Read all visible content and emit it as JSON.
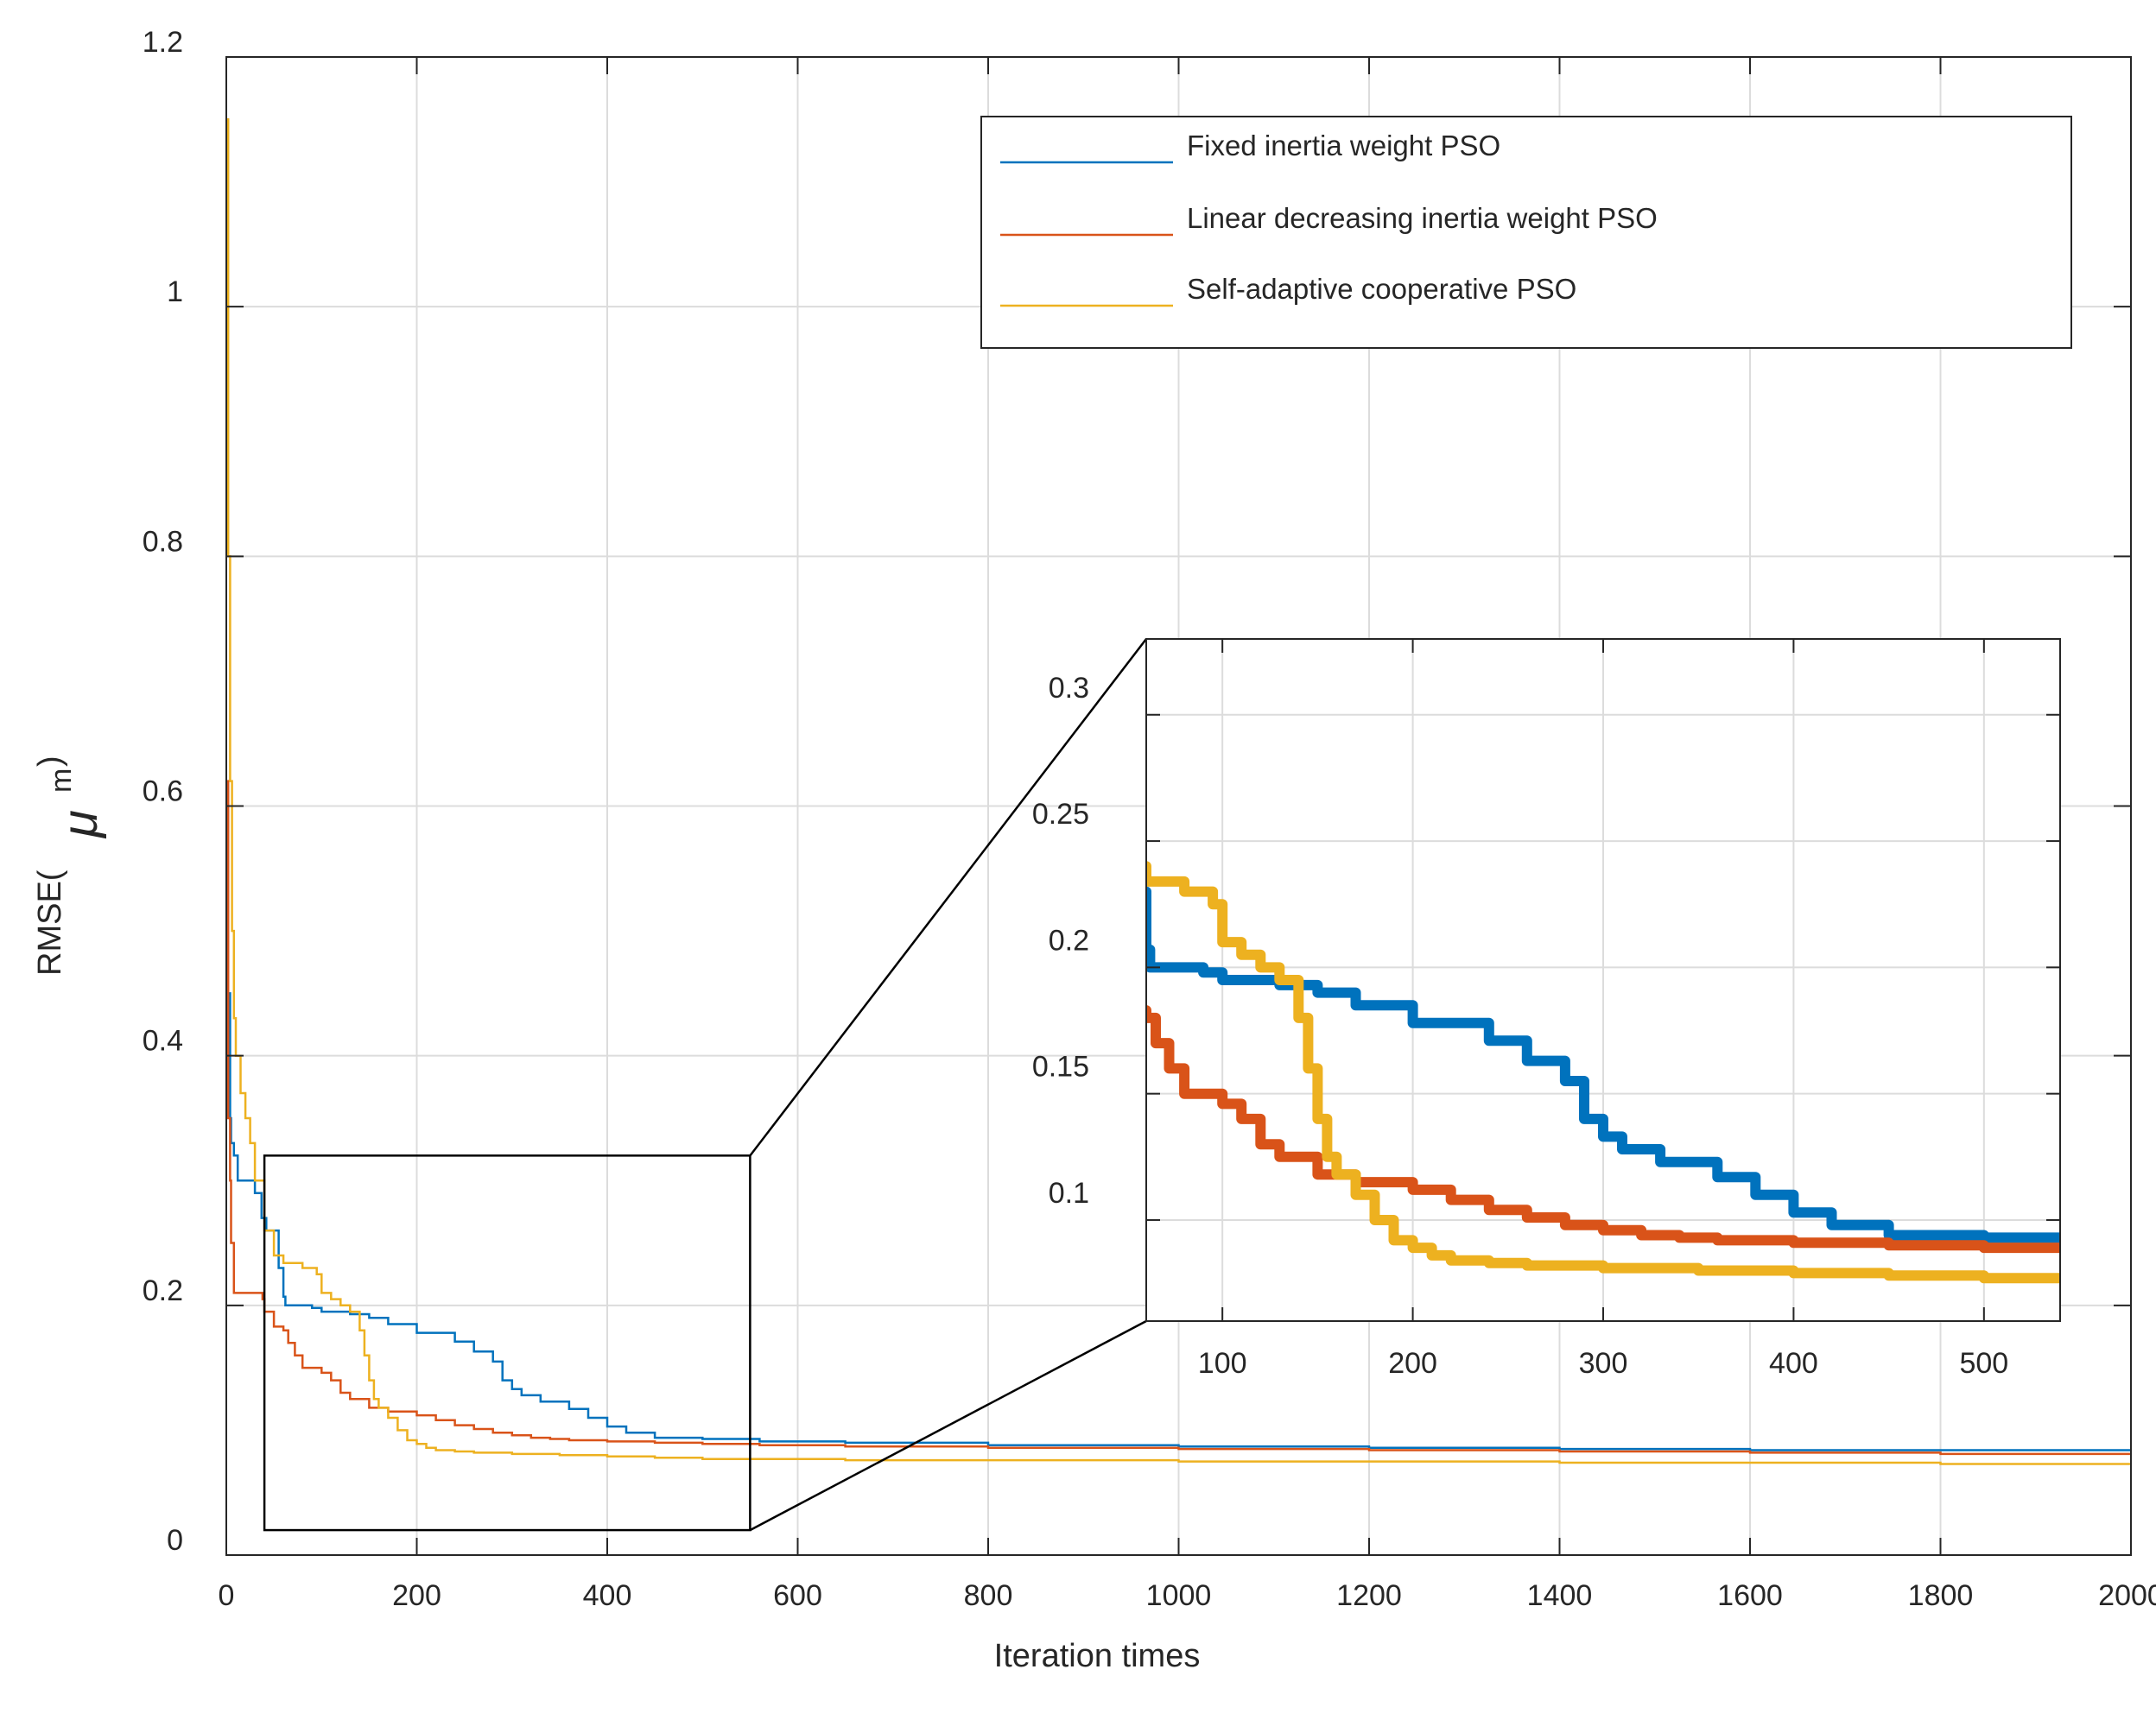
{
  "chart_data": {
    "type": "line",
    "title": "",
    "xlabel": "Iteration times",
    "ylabel_prefix": "RMSE(",
    "ylabel_unit_mu": "μ",
    "ylabel_unit_sup": "m",
    "ylabel_suffix": ")",
    "xlim": [
      0,
      2000
    ],
    "ylim": [
      0,
      1.2
    ],
    "xticks": [
      0,
      200,
      400,
      600,
      800,
      1000,
      1200,
      1400,
      1600,
      1800,
      2000
    ],
    "yticks": [
      0,
      0.2,
      0.4,
      0.6,
      0.8,
      1,
      1.2
    ],
    "xtick_labels": [
      "0",
      "200",
      "400",
      "600",
      "800",
      "1000",
      "1200",
      "1400",
      "1600",
      "1800",
      "2000"
    ],
    "ytick_labels": [
      "0",
      "0.2",
      "0.4",
      "0.6",
      "0.8",
      "1",
      "1.2"
    ],
    "grid": true,
    "legend": {
      "placement": "top-right"
    },
    "series": [
      {
        "name": "Fixed inertia weight PSO",
        "color": "#0072BD",
        "x": [
          1,
          4,
          5,
          8,
          12,
          20,
          30,
          37,
          42,
          45,
          55,
          60,
          62,
          90,
          100,
          130,
          150,
          170,
          200,
          240,
          260,
          280,
          290,
          300,
          310,
          330,
          360,
          380,
          400,
          420,
          450,
          500,
          560,
          650,
          800,
          1000,
          1200,
          1400,
          1600,
          1800,
          2000
        ],
        "y": [
          0.45,
          0.35,
          0.33,
          0.32,
          0.3,
          0.3,
          0.29,
          0.27,
          0.26,
          0.26,
          0.23,
          0.207,
          0.2,
          0.198,
          0.195,
          0.193,
          0.19,
          0.185,
          0.178,
          0.171,
          0.163,
          0.155,
          0.14,
          0.133,
          0.128,
          0.123,
          0.117,
          0.11,
          0.103,
          0.098,
          0.094,
          0.093,
          0.091,
          0.09,
          0.088,
          0.087,
          0.086,
          0.085,
          0.084,
          0.084,
          0.083
        ]
      },
      {
        "name": "Linear decreasing inertia weight PSO",
        "color": "#D95319",
        "x": [
          0,
          2,
          4,
          5,
          8,
          30,
          38,
          40,
          50,
          60,
          65,
          72,
          80,
          100,
          110,
          120,
          130,
          150,
          170,
          200,
          220,
          240,
          260,
          280,
          300,
          320,
          340,
          360,
          400,
          450,
          500,
          560,
          650,
          800,
          1000,
          1200,
          1400,
          1600,
          1800,
          2000
        ],
        "y": [
          0.62,
          0.35,
          0.3,
          0.25,
          0.21,
          0.21,
          0.205,
          0.195,
          0.183,
          0.18,
          0.17,
          0.16,
          0.15,
          0.146,
          0.14,
          0.13,
          0.125,
          0.118,
          0.115,
          0.112,
          0.108,
          0.104,
          0.101,
          0.098,
          0.096,
          0.094,
          0.093,
          0.092,
          0.091,
          0.09,
          0.089,
          0.088,
          0.087,
          0.086,
          0.085,
          0.084,
          0.083,
          0.082,
          0.081,
          0.08
        ]
      },
      {
        "name": "Self-adaptive cooperative PSO",
        "color": "#EDB120",
        "x": [
          0,
          2,
          4,
          6,
          8,
          10,
          15,
          20,
          25,
          30,
          40,
          50,
          60,
          80,
          95,
          100,
          110,
          120,
          130,
          140,
          145,
          150,
          155,
          160,
          170,
          180,
          190,
          200,
          210,
          220,
          240,
          260,
          300,
          350,
          400,
          450,
          500,
          560,
          650,
          800,
          1000,
          1200,
          1400,
          1600,
          1800,
          2000
        ],
        "y": [
          1.15,
          0.8,
          0.62,
          0.5,
          0.43,
          0.4,
          0.37,
          0.35,
          0.33,
          0.3,
          0.26,
          0.24,
          0.234,
          0.23,
          0.225,
          0.21,
          0.205,
          0.2,
          0.195,
          0.18,
          0.16,
          0.14,
          0.125,
          0.118,
          0.11,
          0.1,
          0.092,
          0.089,
          0.086,
          0.084,
          0.083,
          0.082,
          0.081,
          0.08,
          0.079,
          0.078,
          0.077,
          0.077,
          0.076,
          0.076,
          0.075,
          0.075,
          0.074,
          0.074,
          0.073,
          0.073
        ]
      }
    ],
    "inset": {
      "xlim": [
        60,
        540
      ],
      "ylim": [
        0.06,
        0.33
      ],
      "xticks": [
        100,
        200,
        300,
        400,
        500
      ],
      "yticks": [
        0.1,
        0.15,
        0.2,
        0.25,
        0.3
      ],
      "xtick_labels": [
        "100",
        "200",
        "300",
        "400",
        "500"
      ],
      "ytick_labels": [
        "0.1",
        "0.15",
        "0.2",
        "0.25",
        "0.3"
      ],
      "zoom_region": {
        "x": [
          40,
          550
        ],
        "y": [
          0.02,
          0.32
        ]
      }
    }
  }
}
